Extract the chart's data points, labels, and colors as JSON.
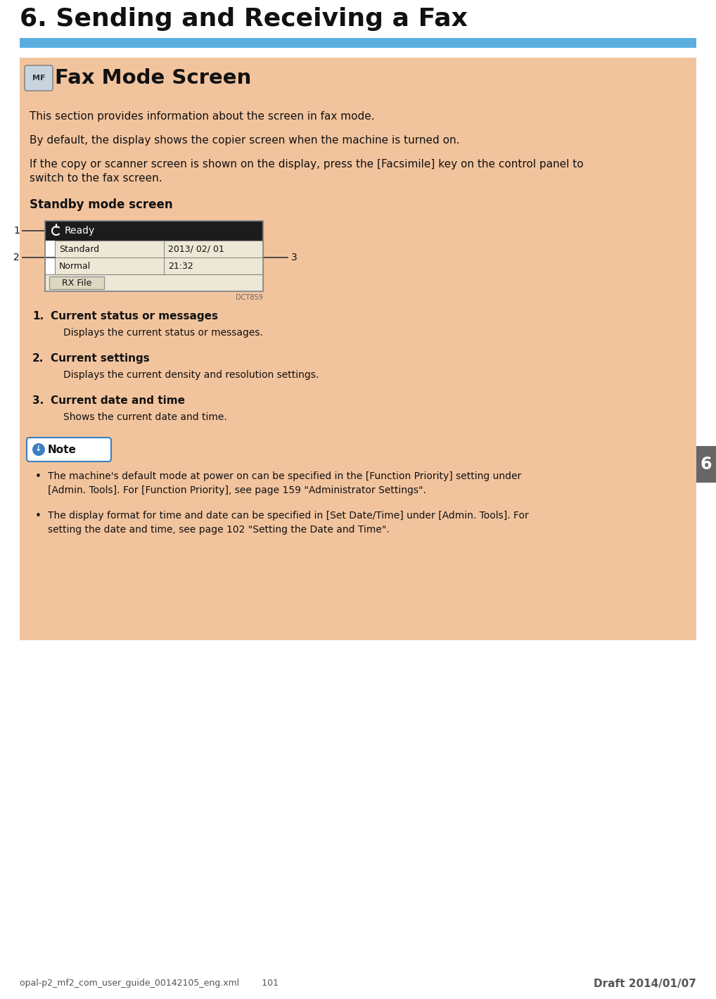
{
  "page_bg": "#ffffff",
  "content_bg": "#f2c49e",
  "header_title": "6. Sending and Receiving a Fax",
  "header_bar_color": "#5aafe0",
  "section_title": "Fax Mode Screen",
  "mf_badge_text": "MF",
  "body_text1": "This section provides information about the screen in fax mode.",
  "body_text2": "By default, the display shows the copier screen when the machine is turned on.",
  "body_text3a": "If the copy or scanner screen is shown on the display, press the [Facsimile] key on the control panel to",
  "body_text3b": "switch to the fax screen.",
  "standby_label": "Standby mode screen",
  "screen_bg": "#1c1c1c",
  "screen_ready_text": "Ready",
  "screen_standard_text": "Standard",
  "screen_normal_text": "Normal",
  "screen_date_text": "2013/ 02/ 01",
  "screen_time_text": "21:32",
  "screen_rxfile_text": "RX File",
  "screen_inner_bg": "#ede8d5",
  "screen_border": "#888888",
  "dct_label": "DCT859",
  "item1_num": "1.",
  "item1_label": "Current status or messages",
  "item1_desc": "Displays the current status or messages.",
  "item2_num": "2.",
  "item2_label": "Current settings",
  "item2_desc": "Displays the current density and resolution settings.",
  "item3_num": "3.",
  "item3_label": "Current date and time",
  "item3_desc": "Shows the current date and time.",
  "note_text": "Note",
  "note_border": "#3a7fc1",
  "note_icon_bg": "#3a7fc1",
  "bullet1a": "The machine's default mode at power on can be specified in the [Function Priority] setting under",
  "bullet1b": "[Admin. Tools]. For [Function Priority], see page 159 \"Administrator Settings\".",
  "bullet2a": "The display format for time and date can be specified in [Set Date/Time] under [Admin. Tools]. For",
  "bullet2b": "setting the date and time, see page 102 \"Setting the Date and Time\".",
  "tab_color": "#666666",
  "tab_text": "6",
  "footer_left": "opal-p2_mf2_com_user_guide_00142105_eng.xml        101",
  "footer_right": "Draft 2014/01/07",
  "text_color": "#111111",
  "line_color": "#333333"
}
